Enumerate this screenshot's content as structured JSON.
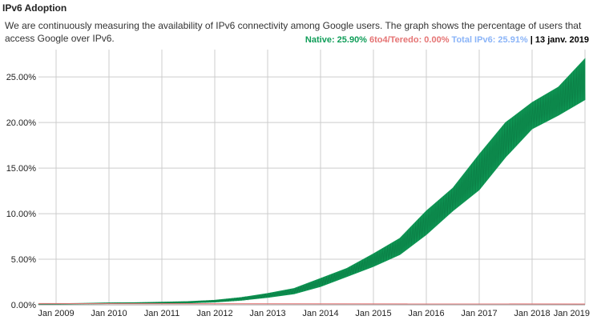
{
  "header": {
    "title": "IPv6 Adoption",
    "description": "We are continuously measuring the availability of IPv6 connectivity among Google users. The graph shows the percentage of users that access Google over IPv6."
  },
  "legend": {
    "native": "Native: 25.90%",
    "teredo": "6to4/Teredo: 0.00%",
    "total": "Total IPv6: 25.91%",
    "separator": "|",
    "date": "13 janv. 2019"
  },
  "colors": {
    "native": "#0f9d58",
    "teredo": "#e57373",
    "total": "#8ab4f8",
    "grid": "#cccccc"
  },
  "chart_data": {
    "type": "area",
    "title": "",
    "xlabel": "",
    "ylabel": "",
    "x_tick_labels": [
      "Jan 2009",
      "Jan 2010",
      "Jan 2011",
      "Jan 2012",
      "Jan 2013",
      "Jan 2014",
      "Jan 2015",
      "Jan 2016",
      "Jan 2017",
      "Jan 2018",
      "Jan 2019"
    ],
    "y_tick_labels": [
      "0.00%",
      "5.00%",
      "10.00%",
      "15.00%",
      "20.00%",
      "25.00%"
    ],
    "xlim": [
      "2008-09",
      "2019-01"
    ],
    "ylim": [
      0,
      28
    ],
    "grid": true,
    "series": [
      {
        "name": "Native",
        "x": [
          "2008-09",
          "2009-01",
          "2009-07",
          "2010-01",
          "2010-07",
          "2011-01",
          "2011-07",
          "2012-01",
          "2012-07",
          "2013-01",
          "2013-07",
          "2014-01",
          "2014-07",
          "2015-01",
          "2015-07",
          "2016-01",
          "2016-07",
          "2017-01",
          "2017-07",
          "2018-01",
          "2018-07",
          "2019-01"
        ],
        "low": [
          0.05,
          0.08,
          0.1,
          0.12,
          0.14,
          0.16,
          0.2,
          0.3,
          0.5,
          0.8,
          1.2,
          2.0,
          3.1,
          4.2,
          5.5,
          7.7,
          10.3,
          12.6,
          16.2,
          19.3,
          20.8,
          22.5
        ],
        "high": [
          0.08,
          0.12,
          0.16,
          0.22,
          0.24,
          0.3,
          0.36,
          0.5,
          0.8,
          1.25,
          1.8,
          2.9,
          4.0,
          5.6,
          7.3,
          10.3,
          12.8,
          16.5,
          20.0,
          22.2,
          23.9,
          27.0
        ]
      },
      {
        "name": "6to4/Teredo",
        "x": [
          "2008-09",
          "2019-01"
        ],
        "values": [
          0.05,
          0.0
        ]
      }
    ]
  }
}
